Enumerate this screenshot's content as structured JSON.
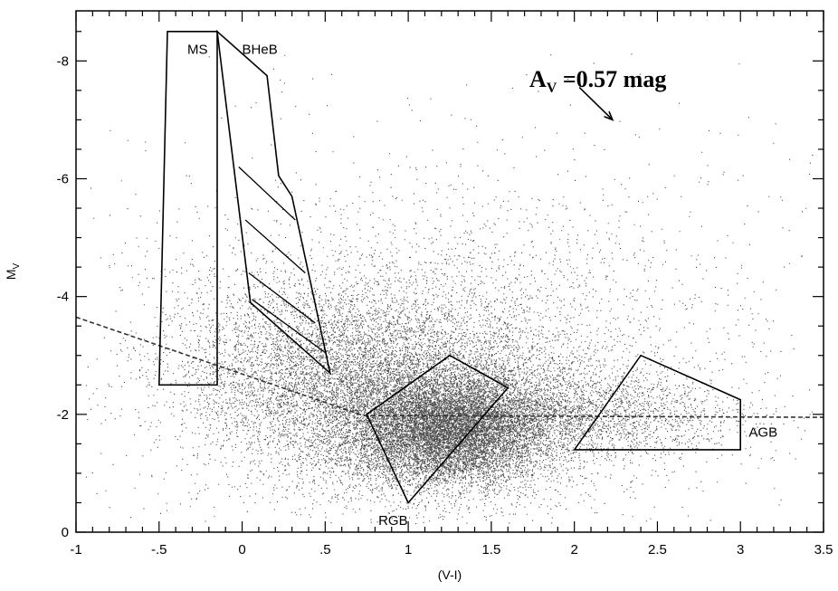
{
  "chart_data": {
    "type": "scatter",
    "title": "",
    "xlabel": "(V-I)",
    "ylabel": "M",
    "ylabel_sub": "V",
    "xlim": [
      -1,
      3.5
    ],
    "ylim": [
      0,
      -9
    ],
    "y_inverted": true,
    "x_ticks": [
      {
        "value": -1,
        "label": "-1"
      },
      {
        "value": -0.5,
        "label": "-.5"
      },
      {
        "value": 0,
        "label": "0"
      },
      {
        "value": 0.5,
        "label": ".5"
      },
      {
        "value": 1,
        "label": "1"
      },
      {
        "value": 1.5,
        "label": "1.5"
      },
      {
        "value": 2,
        "label": "2"
      },
      {
        "value": 2.5,
        "label": "2.5"
      },
      {
        "value": 3,
        "label": "3"
      },
      {
        "value": 3.5,
        "label": "3.5"
      }
    ],
    "y_ticks": [
      {
        "value": 0,
        "label": "0"
      },
      {
        "value": -2,
        "label": "-2"
      },
      {
        "value": -4,
        "label": "-4"
      },
      {
        "value": -6,
        "label": "-6"
      },
      {
        "value": -8,
        "label": "-8"
      }
    ],
    "point_density_components": [
      {
        "cx": 1.25,
        "cy": -1.75,
        "sx": 0.3,
        "sy": 0.45,
        "count": 9000
      },
      {
        "cx": 1.1,
        "cy": -2.2,
        "sx": 0.55,
        "sy": 0.85,
        "count": 6000
      },
      {
        "cx": 0.45,
        "cy": -2.8,
        "sx": 0.45,
        "sy": 0.8,
        "count": 3500
      },
      {
        "cx": 2.1,
        "cy": -2.0,
        "sx": 0.45,
        "sy": 0.35,
        "count": 1800
      },
      {
        "cx": 1.2,
        "cy": -3.2,
        "sx": 0.9,
        "sy": 1.3,
        "count": 2500
      },
      {
        "cx": 1.3,
        "cy": -3.5,
        "sx": 1.3,
        "sy": 2.2,
        "count": 900
      }
    ],
    "regions": [
      {
        "name": "MS",
        "label": "MS",
        "polygon": [
          [
            -0.45,
            -8.5
          ],
          [
            -0.15,
            -8.5
          ],
          [
            -0.15,
            -2.5
          ],
          [
            -0.5,
            -2.5
          ]
        ],
        "label_at": [
          -0.33,
          -8.2
        ]
      },
      {
        "name": "BHeB",
        "label": "BHeB",
        "polygon": [
          [
            -0.15,
            -8.5
          ],
          [
            0.15,
            -7.75
          ],
          [
            0.22,
            -6.05
          ],
          [
            0.3,
            -5.7
          ],
          [
            0.53,
            -2.7
          ],
          [
            0.05,
            -3.9
          ],
          [
            -0.15,
            -8.5
          ]
        ],
        "label_at": [
          0.0,
          -8.2
        ]
      },
      {
        "name": "RGB",
        "label": "RGB",
        "polygon": [
          [
            0.75,
            -2.0
          ],
          [
            1.25,
            -3.0
          ],
          [
            1.6,
            -2.45
          ],
          [
            1.0,
            -0.5
          ]
        ],
        "label_at": [
          0.82,
          -0.2
        ]
      },
      {
        "name": "AGB",
        "label": "AGB",
        "polygon": [
          [
            2.0,
            -1.4
          ],
          [
            2.4,
            -3.0
          ],
          [
            3.0,
            -2.25
          ],
          [
            3.0,
            -1.4
          ]
        ],
        "label_at": [
          3.05,
          -1.7
        ]
      }
    ],
    "bheb_dividers": [
      [
        [
          -0.02,
          -6.2
        ],
        [
          0.32,
          -5.3
        ]
      ],
      [
        [
          0.02,
          -5.3
        ],
        [
          0.38,
          -4.4
        ]
      ],
      [
        [
          0.04,
          -4.4
        ],
        [
          0.44,
          -3.55
        ]
      ],
      [
        [
          0.06,
          -3.95
        ],
        [
          0.5,
          -3.05
        ]
      ]
    ],
    "dashed_line": [
      [
        -1.0,
        -3.65
      ],
      [
        0.73,
        -1.98
      ],
      [
        3.5,
        -1.95
      ]
    ],
    "reddening_label": "A",
    "reddening_sub": "V",
    "reddening_value": " =0.57 mag",
    "reddening_vector": {
      "from": [
        2.03,
        -7.55
      ],
      "to": [
        2.23,
        -7.0
      ]
    }
  }
}
